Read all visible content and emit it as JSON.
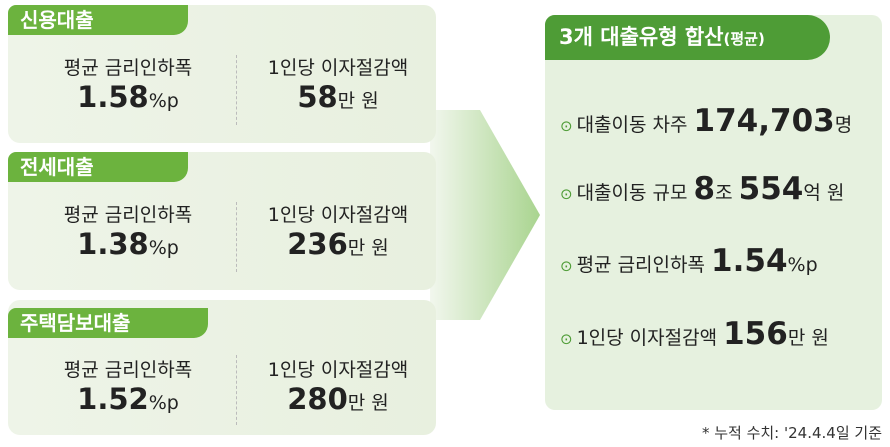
{
  "cards": [
    {
      "title": "신용대출",
      "left_label": "평균 금리인하폭",
      "left_value": "1.58",
      "left_unit": "%p",
      "right_label": "1인당 이자절감액",
      "right_value": "58",
      "right_unit": "만 원"
    },
    {
      "title": "전세대출",
      "left_label": "평균 금리인하폭",
      "left_value": "1.38",
      "left_unit": "%p",
      "right_label": "1인당 이자절감액",
      "right_value": "236",
      "right_unit": "만 원"
    },
    {
      "title": "주택담보대출",
      "left_label": "평균 금리인하폭",
      "left_value": "1.52",
      "left_unit": "%p",
      "right_label": "1인당 이자절감액",
      "right_value": "280",
      "right_unit": "만 원"
    }
  ],
  "summary": {
    "title": "3개 대출유형 합산",
    "title_note": "(평균)",
    "items": [
      {
        "parts": [
          {
            "text": "대출이동 차주 ",
            "bold": false
          },
          {
            "text": "174,703",
            "bold": true
          },
          {
            "text": "명",
            "bold": false
          }
        ]
      },
      {
        "parts": [
          {
            "text": "대출이동 규모 ",
            "bold": false
          },
          {
            "text": "8",
            "bold": true
          },
          {
            "text": "조 ",
            "bold": false
          },
          {
            "text": "554",
            "bold": true
          },
          {
            "text": "억 원",
            "bold": false
          }
        ]
      },
      {
        "parts": [
          {
            "text": "평균 금리인하폭 ",
            "bold": false
          },
          {
            "text": "1.54",
            "bold": true
          },
          {
            "text": "%p",
            "bold": false
          }
        ]
      },
      {
        "parts": [
          {
            "text": "1인당 이자절감액 ",
            "bold": false
          },
          {
            "text": "156",
            "bold": true
          },
          {
            "text": "만 원",
            "bold": false
          }
        ]
      }
    ]
  },
  "footnote": "* 누적 수치: '24.4.4일 기준"
}
